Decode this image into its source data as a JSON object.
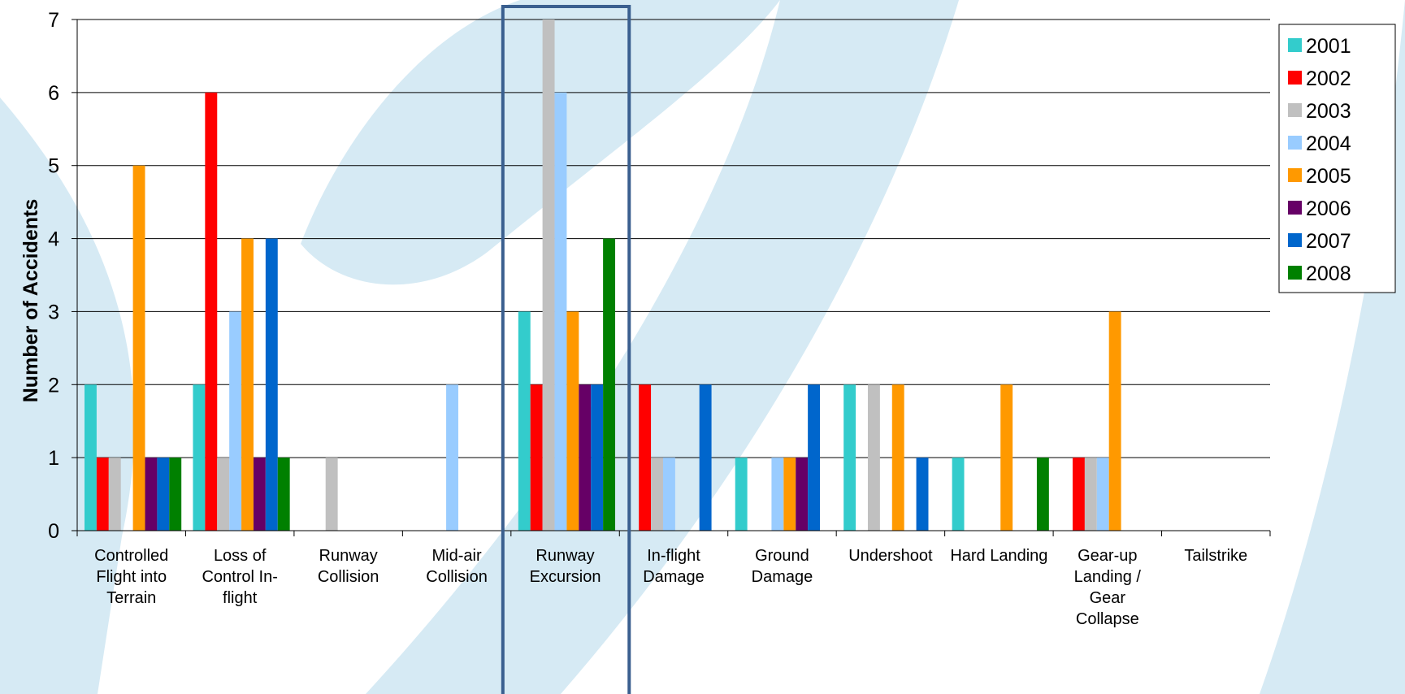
{
  "chart_data": {
    "type": "bar",
    "title": "",
    "xlabel": "",
    "ylabel": "Number of Accidents",
    "ylim": [
      0,
      7
    ],
    "yticks": [
      "0",
      "1",
      "2",
      "3",
      "4",
      "5",
      "6",
      "7"
    ],
    "grid": true,
    "legend_position": "top-right",
    "categories": [
      [
        "Controlled",
        "Flight into",
        "Terrain"
      ],
      [
        "Loss of",
        "Control In-",
        "flight"
      ],
      [
        "Runway",
        "Collision"
      ],
      [
        "Mid-air",
        "Collision"
      ],
      [
        "Runway",
        "Excursion"
      ],
      [
        "In-flight",
        "Damage"
      ],
      [
        "Ground",
        "Damage"
      ],
      [
        "Undershoot"
      ],
      [
        "Hard Landing"
      ],
      [
        "Gear-up",
        "Landing /",
        "Gear",
        "Collapse"
      ],
      [
        "Tailstrike"
      ]
    ],
    "series": [
      {
        "name": "2001",
        "color": "#33cccc",
        "values": [
          2,
          2,
          0,
          0,
          3,
          0,
          1,
          2,
          1,
          0,
          0
        ]
      },
      {
        "name": "2002",
        "color": "#ff0000",
        "values": [
          1,
          6,
          0,
          0,
          2,
          2,
          0,
          0,
          0,
          1,
          0
        ]
      },
      {
        "name": "2003",
        "color": "#c0c0c0",
        "values": [
          1,
          1,
          1,
          0,
          7,
          1,
          0,
          2,
          0,
          1,
          0
        ]
      },
      {
        "name": "2004",
        "color": "#99ccff",
        "values": [
          0,
          3,
          0,
          2,
          6,
          1,
          1,
          0,
          0,
          1,
          0
        ]
      },
      {
        "name": "2005",
        "color": "#ff9900",
        "values": [
          5,
          4,
          0,
          0,
          3,
          0,
          1,
          2,
          2,
          3,
          0
        ]
      },
      {
        "name": "2006",
        "color": "#660066",
        "values": [
          1,
          1,
          0,
          0,
          2,
          0,
          1,
          0,
          0,
          0,
          0
        ]
      },
      {
        "name": "2007",
        "color": "#0066cc",
        "values": [
          1,
          4,
          0,
          0,
          2,
          2,
          2,
          1,
          0,
          0,
          0
        ]
      },
      {
        "name": "2008",
        "color": "#008000",
        "values": [
          1,
          1,
          0,
          0,
          4,
          0,
          0,
          0,
          1,
          0,
          0
        ]
      }
    ],
    "highlighted_category": 4,
    "highlight_color": "#3a5f8f",
    "watermark_color": "#d6eaf4"
  }
}
